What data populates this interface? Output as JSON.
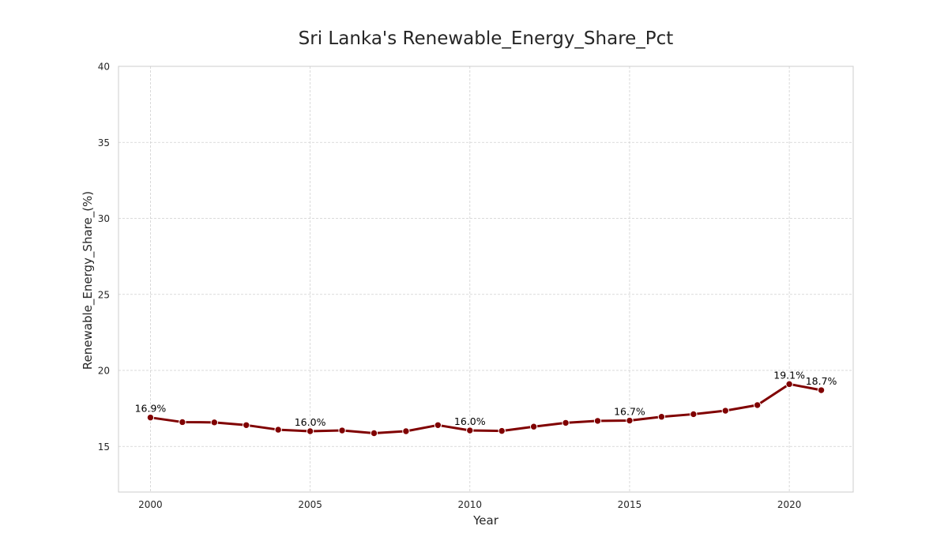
{
  "chart_data": {
    "type": "line",
    "title": "Sri Lanka's Renewable_Energy_Share_Pct",
    "xlabel": "Year",
    "ylabel": "Renewable_Energy_Share_(%)",
    "xlim": [
      1999,
      2022
    ],
    "ylim": [
      12,
      40
    ],
    "xticks": [
      2000,
      2005,
      2010,
      2015,
      2020
    ],
    "yticks": [
      15,
      20,
      25,
      30,
      35,
      40
    ],
    "grid": true,
    "line_color": "#800000",
    "series": [
      {
        "x": [
          2000,
          2001,
          2002,
          2003,
          2004,
          2005,
          2006,
          2007,
          2008,
          2009,
          2010,
          2011,
          2012,
          2013,
          2014,
          2015,
          2016,
          2017,
          2018,
          2019,
          2020,
          2021
        ],
        "values": [
          16.9,
          16.6,
          16.58,
          16.4,
          16.1,
          16.0,
          16.05,
          15.87,
          16.0,
          16.4,
          16.05,
          16.02,
          16.3,
          16.55,
          16.68,
          16.7,
          16.95,
          17.12,
          17.35,
          17.72,
          19.1,
          18.7
        ]
      }
    ],
    "annotations": [
      {
        "x": 2000,
        "y": 16.9,
        "text": "16.9%"
      },
      {
        "x": 2005,
        "y": 16.0,
        "text": "16.0%"
      },
      {
        "x": 2010,
        "y": 16.05,
        "text": "16.0%"
      },
      {
        "x": 2015,
        "y": 16.7,
        "text": "16.7%"
      },
      {
        "x": 2020,
        "y": 19.1,
        "text": "19.1%"
      },
      {
        "x": 2021,
        "y": 18.7,
        "text": "18.7%"
      }
    ]
  }
}
